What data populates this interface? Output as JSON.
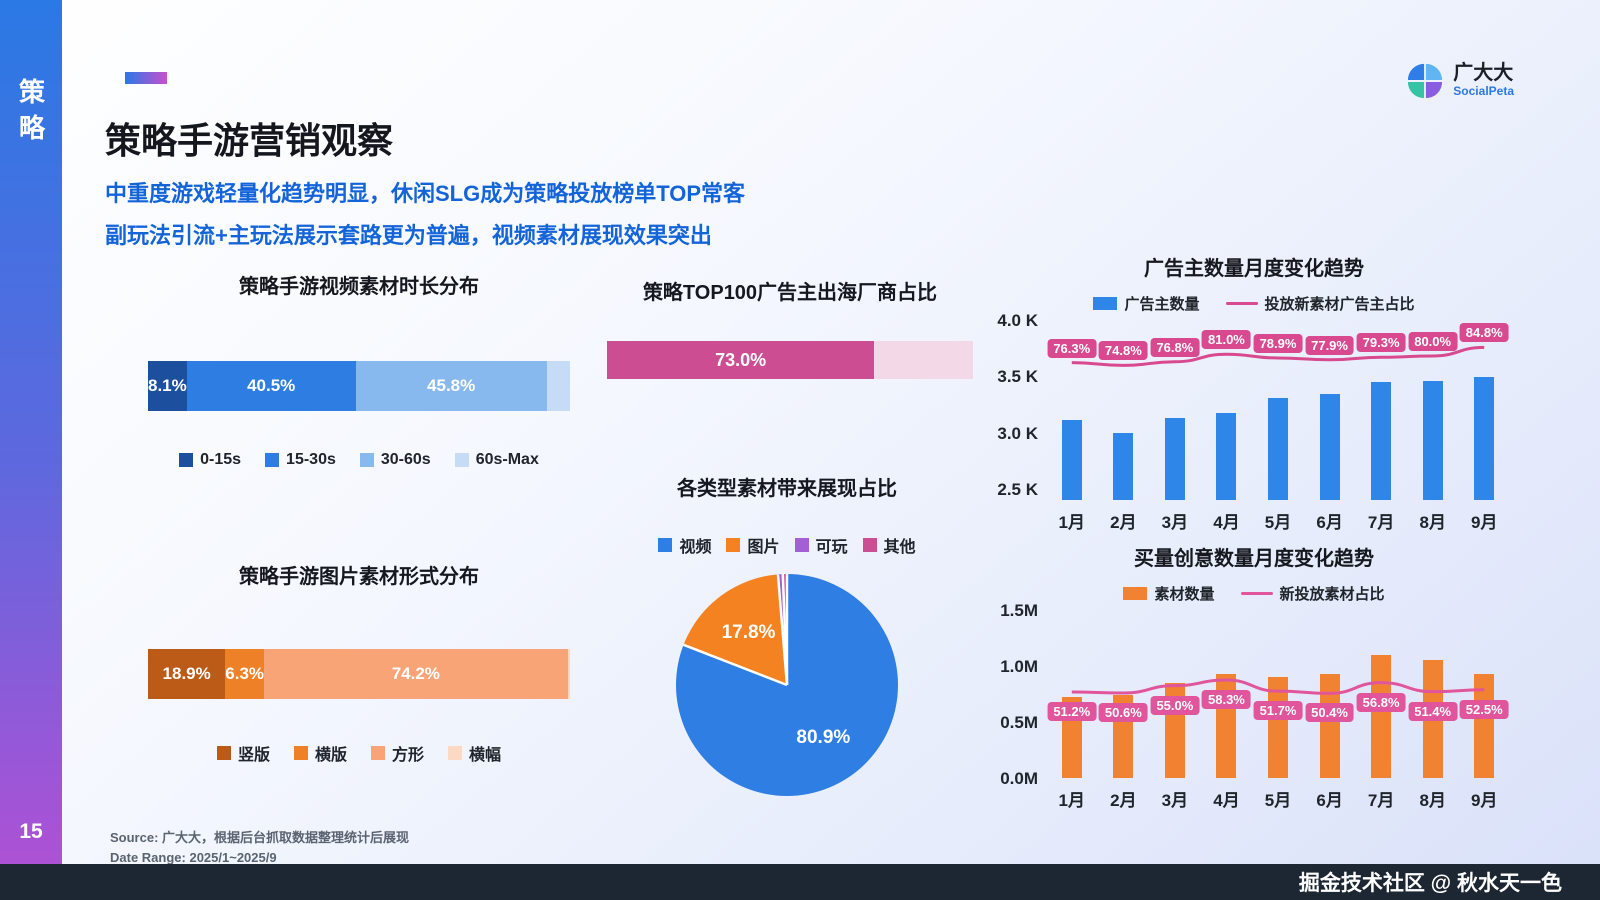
{
  "sidebar": {
    "label": "策略",
    "page_number": "15"
  },
  "header": {
    "title": "策略手游营销观察",
    "subtitle1": "中重度游戏轻量化趋势明显，休闲SLG成为策略投放榜单TOP常客",
    "subtitle2": "副玩法引流+主玩法展示套路更为普遍，视频素材展现效果突出",
    "logo_name": "广大大",
    "logo_sub": "SocialPeta"
  },
  "footer": {
    "source": "Source:  广大大，根据后台抓取数据整理统计后展现",
    "date_range": "Date Range:  2025/1~2025/9",
    "watermark": "掘金技术社区 @ 秋水天一色"
  },
  "chart_data": [
    {
      "type": "stacked-bar",
      "title": "策略手游视频素材时长分布",
      "categories": [
        "0-15s",
        "15-30s",
        "30-60s",
        "60s-Max"
      ],
      "values": [
        8.1,
        40.5,
        45.8,
        5.6
      ],
      "data_labels": [
        "8.1%",
        "40.5%",
        "45.8%",
        ""
      ],
      "colors": [
        "#1d4f9f",
        "#2d7de2",
        "#88b9ee",
        "#c6dcf6"
      ]
    },
    {
      "type": "stacked-bar",
      "title": "策略TOP100广告主出海厂商占比",
      "categories": [],
      "values": [
        73.0,
        27.0
      ],
      "data_labels": [
        "73.0%",
        ""
      ],
      "colors": [
        "#cd4d92",
        "#f3d9e8"
      ]
    },
    {
      "type": "pie",
      "title": "各类型素材带来展现占比",
      "categories": [
        "视频",
        "图片",
        "可玩",
        "其他"
      ],
      "values": [
        80.9,
        17.8,
        0.7,
        0.6
      ],
      "data_labels": [
        "80.9%",
        "17.8%",
        "",
        ""
      ],
      "colors": [
        "#2e7ee4",
        "#f58220",
        "#a45fd6",
        "#cd4d92"
      ]
    },
    {
      "type": "stacked-bar",
      "title": "策略手游图片素材形式分布",
      "categories": [
        "竖版",
        "横版",
        "方形",
        "横幅"
      ],
      "values": [
        18.9,
        6.3,
        74.2,
        0.6
      ],
      "data_labels": [
        "18.9%",
        "6.3%",
        "74.2%",
        ""
      ],
      "colors": [
        "#bc5a17",
        "#ee8127",
        "#f9a476",
        "#fbd9c2"
      ]
    },
    {
      "type": "bar-line",
      "title": "广告主数量月度变化趋势",
      "categories": [
        "1月",
        "2月",
        "3月",
        "4月",
        "5月",
        "6月",
        "7月",
        "8月",
        "9月"
      ],
      "bar_series": {
        "name": "广告主数量",
        "unit": "K",
        "color": "#2e86e8",
        "values": [
          3.11,
          3.0,
          3.13,
          3.17,
          3.31,
          3.34,
          3.45,
          3.46,
          3.49
        ]
      },
      "line_series": {
        "name": "投放新素材广告主占比",
        "unit": "%",
        "color": "#d8498f",
        "values": [
          76.3,
          74.8,
          76.8,
          81.0,
          78.9,
          77.9,
          79.3,
          80.0,
          84.8
        ]
      },
      "y_axis": {
        "min": 2.4,
        "max": 4.0,
        "ticks": [
          {
            "label": "4.0 K",
            "value": 4.0
          },
          {
            "label": "3.5 K",
            "value": 3.5
          },
          {
            "label": "3.0 K",
            "value": 3.0
          },
          {
            "label": "2.5 K",
            "value": 2.5
          }
        ]
      },
      "badge_side": "above"
    },
    {
      "type": "bar-line",
      "title": "买量创意数量月度变化趋势",
      "categories": [
        "1月",
        "2月",
        "3月",
        "4月",
        "5月",
        "6月",
        "7月",
        "8月",
        "9月"
      ],
      "bar_series": {
        "name": "素材数量",
        "unit": "M",
        "color": "#f08232",
        "values": [
          0.72,
          0.74,
          0.85,
          0.93,
          0.9,
          0.93,
          1.1,
          1.05,
          0.93
        ]
      },
      "line_series": {
        "name": "新投放素材占比",
        "unit": "%",
        "color": "#e0559c",
        "values": [
          51.2,
          50.6,
          55.0,
          58.3,
          51.7,
          50.4,
          56.8,
          51.4,
          52.5
        ]
      },
      "y_axis": {
        "min": 0,
        "max": 1.5,
        "ticks": [
          {
            "label": "1.5M",
            "value": 1.5
          },
          {
            "label": "1.0M",
            "value": 1.0
          },
          {
            "label": "0.5M",
            "value": 0.5
          },
          {
            "label": "0.0M",
            "value": 0.0
          }
        ]
      },
      "badge_side": "below"
    }
  ]
}
